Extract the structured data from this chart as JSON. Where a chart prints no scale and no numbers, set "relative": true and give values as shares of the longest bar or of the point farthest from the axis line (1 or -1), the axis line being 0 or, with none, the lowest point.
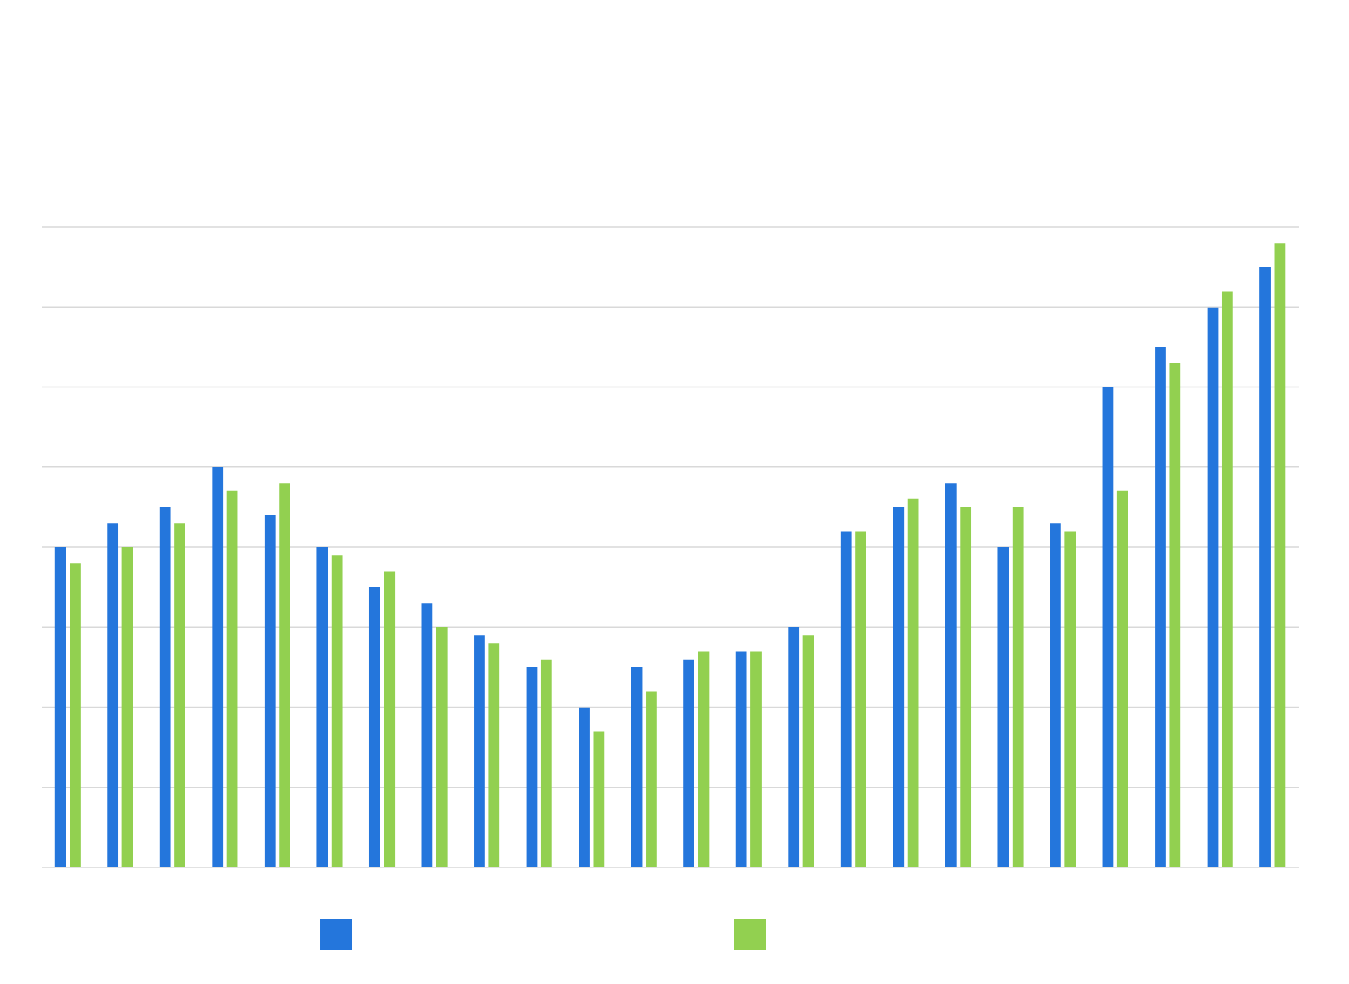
{
  "chart_data": {
    "type": "bar",
    "relative": true,
    "grid": "y",
    "categories": [
      null,
      null,
      null,
      null,
      null,
      null,
      null,
      null,
      null,
      null,
      null,
      null,
      null,
      null,
      null,
      null,
      null,
      null,
      null,
      null,
      null,
      null,
      null,
      null
    ],
    "series": [
      {
        "color": "#2476dc",
        "values": [
          0.513,
          0.551,
          0.577,
          0.641,
          0.564,
          0.513,
          0.449,
          0.423,
          0.372,
          0.321,
          0.256,
          0.321,
          0.333,
          0.346,
          0.385,
          0.538,
          0.577,
          0.615,
          0.513,
          0.551,
          0.769,
          0.833,
          0.897,
          0.962
        ]
      },
      {
        "color": "#92d050",
        "values": [
          0.487,
          0.513,
          0.551,
          0.603,
          0.615,
          0.5,
          0.474,
          0.385,
          0.359,
          0.333,
          0.218,
          0.282,
          0.346,
          0.346,
          0.372,
          0.538,
          0.59,
          0.577,
          0.577,
          0.538,
          0.603,
          0.808,
          0.923,
          1
        ]
      }
    ]
  }
}
